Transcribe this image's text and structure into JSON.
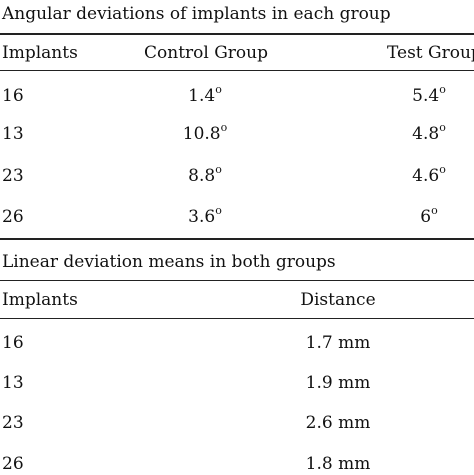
{
  "table1": {
    "caption": "Angular deviations of implants in each group",
    "headers": [
      "Implants",
      "Control Group",
      "Test Group"
    ],
    "degree_symbol": "o",
    "rows": [
      {
        "implant": "16",
        "control": "1.4",
        "test": "5.4"
      },
      {
        "implant": "13",
        "control": "10.8",
        "test": "4.8"
      },
      {
        "implant": "23",
        "control": "8.8",
        "test": "4.6"
      },
      {
        "implant": "26",
        "control": "3.6",
        "test": "6"
      }
    ]
  },
  "table2": {
    "caption": "Linear deviation means in both groups",
    "headers": [
      "Implants",
      "Distance"
    ],
    "rows": [
      {
        "implant": "16",
        "distance": "1.7 mm"
      },
      {
        "implant": "13",
        "distance": "1.9 mm"
      },
      {
        "implant": "23",
        "distance": "2.6 mm"
      },
      {
        "implant": "26",
        "distance": "1.8 mm"
      }
    ]
  }
}
